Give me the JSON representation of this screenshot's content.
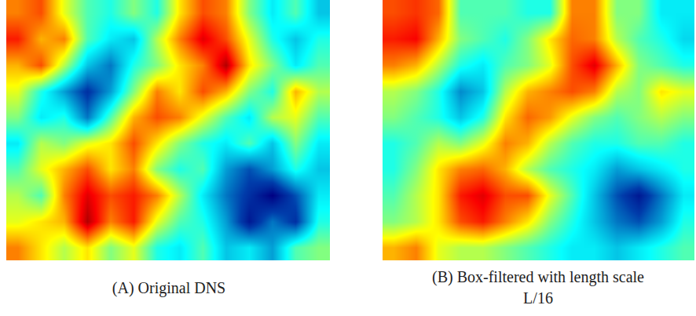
{
  "chart_data": [
    {
      "type": "heatmap",
      "title": "(A) Original DNS",
      "zlim": [
        -1,
        1
      ],
      "tick_labels": false,
      "cells": [
        [
          0.5,
          0.6,
          0.2,
          -0.1,
          -0.2,
          0.0,
          -0.2,
          0.3,
          0.6,
          0.5,
          0.0,
          -0.3,
          -0.1,
          -0.4
        ],
        [
          0.7,
          0.4,
          0.5,
          -0.1,
          -0.3,
          -0.4,
          0.1,
          0.5,
          0.8,
          0.6,
          0.2,
          -0.2,
          -0.4,
          -0.2
        ],
        [
          0.4,
          0.6,
          0.1,
          -0.4,
          -0.6,
          -0.2,
          0.0,
          0.3,
          0.5,
          0.9,
          0.3,
          0.0,
          -0.3,
          -0.1
        ],
        [
          0.2,
          -0.2,
          -0.5,
          -0.8,
          -0.5,
          0.0,
          0.5,
          0.3,
          0.6,
          0.4,
          0.0,
          -0.2,
          0.4,
          0.1
        ],
        [
          0.0,
          -0.3,
          -0.2,
          -0.6,
          -0.1,
          0.4,
          0.6,
          0.5,
          0.2,
          -0.1,
          -0.3,
          0.1,
          0.2,
          -0.1
        ],
        [
          -0.3,
          0.1,
          0.0,
          0.2,
          0.3,
          0.6,
          0.3,
          0.0,
          -0.2,
          -0.3,
          -0.1,
          -0.4,
          0.0,
          -0.3
        ],
        [
          -0.1,
          0.2,
          0.4,
          0.6,
          0.3,
          0.5,
          0.0,
          -0.2,
          -0.1,
          -0.5,
          -0.7,
          -0.5,
          -0.2,
          -0.4
        ],
        [
          0.1,
          -0.1,
          0.5,
          0.8,
          0.6,
          0.7,
          0.5,
          0.1,
          -0.3,
          -0.6,
          -0.8,
          -1.0,
          -0.7,
          -0.3
        ],
        [
          0.2,
          0.3,
          0.4,
          0.9,
          0.5,
          0.7,
          0.2,
          -0.1,
          -0.2,
          -0.5,
          -0.9,
          -0.6,
          -0.8,
          -0.2
        ],
        [
          0.5,
          0.3,
          0.1,
          0.3,
          0.0,
          0.2,
          -0.2,
          -0.3,
          -0.1,
          -0.4,
          -0.3,
          -0.5,
          -0.1,
          0.0
        ]
      ]
    },
    {
      "type": "heatmap",
      "title": "(B) Box-filtered with length scale L/16",
      "zlim": [
        -1,
        1
      ],
      "tick_labels": false,
      "cells": [
        [
          0.6,
          0.65,
          0.55,
          -0.1,
          -0.1,
          -0.1,
          -0.2,
          -0.2,
          0.5,
          0.5,
          0.0,
          0.0,
          -0.3,
          -0.3
        ],
        [
          0.7,
          0.75,
          0.4,
          0.0,
          -0.1,
          -0.2,
          0.0,
          0.3,
          0.55,
          0.5,
          0.1,
          -0.1,
          -0.2,
          -0.35
        ],
        [
          0.5,
          0.4,
          0.1,
          -0.2,
          -0.3,
          -0.1,
          0.0,
          0.2,
          0.6,
          0.8,
          0.4,
          0.0,
          -0.1,
          -0.2
        ],
        [
          0.1,
          0.0,
          -0.2,
          -0.55,
          -0.4,
          0.1,
          0.4,
          0.5,
          0.6,
          0.5,
          0.1,
          0.0,
          0.3,
          0.2
        ],
        [
          0.0,
          -0.1,
          -0.2,
          -0.4,
          -0.2,
          0.3,
          0.55,
          0.45,
          0.2,
          0.0,
          -0.1,
          0.0,
          0.1,
          0.0
        ],
        [
          -0.2,
          -0.1,
          0.1,
          0.0,
          0.2,
          0.5,
          0.4,
          0.1,
          -0.1,
          -0.2,
          -0.2,
          -0.1,
          -0.1,
          -0.2
        ],
        [
          -0.2,
          0.0,
          0.3,
          0.5,
          0.55,
          0.4,
          0.1,
          -0.1,
          -0.2,
          -0.3,
          -0.5,
          -0.4,
          -0.3,
          -0.2
        ],
        [
          -0.1,
          0.1,
          0.3,
          0.7,
          0.8,
          0.6,
          0.6,
          0.2,
          -0.1,
          -0.4,
          -0.7,
          -0.9,
          -0.6,
          -0.3
        ],
        [
          0.0,
          0.1,
          0.3,
          0.6,
          0.7,
          0.5,
          0.3,
          0.0,
          -0.2,
          -0.4,
          -0.6,
          -0.7,
          -0.5,
          -0.2
        ],
        [
          0.4,
          0.5,
          0.2,
          0.1,
          0.1,
          0.0,
          -0.1,
          -0.2,
          -0.3,
          -0.3,
          -0.4,
          -0.3,
          -0.2,
          -0.1
        ]
      ]
    }
  ]
}
